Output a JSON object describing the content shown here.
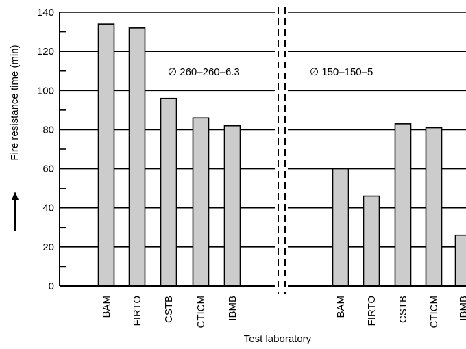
{
  "chart_data": {
    "type": "bar",
    "xlabel": "Test laboratory",
    "ylabel": "Fire resistance time (min)",
    "ylim": [
      0,
      140
    ],
    "yticks": [
      0,
      20,
      40,
      60,
      80,
      100,
      120,
      140
    ],
    "grid": true,
    "bar_color": "#cccccc",
    "groups": [
      {
        "annotation": "∅ 260–260–6.3",
        "categories": [
          "BAM",
          "FIRTO",
          "CSTB",
          "CTICM",
          "IBMB"
        ],
        "values": [
          134,
          132,
          96,
          86,
          82
        ]
      },
      {
        "annotation": "∅ 150–150–5",
        "categories": [
          "BAM",
          "FIRTO",
          "CSTB",
          "CTICM",
          "IBMB"
        ],
        "values": [
          60,
          46,
          83,
          81,
          26
        ]
      }
    ]
  }
}
